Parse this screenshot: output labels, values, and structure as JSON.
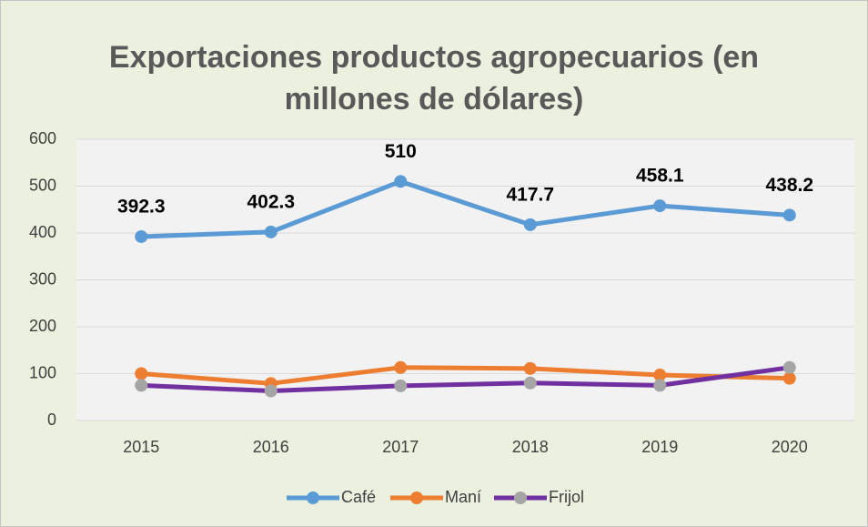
{
  "chart_data": {
    "type": "line",
    "title": "Exportaciones productos agropecuarios (en millones de dólares)",
    "categories": [
      "2015",
      "2016",
      "2017",
      "2018",
      "2019",
      "2020"
    ],
    "series": [
      {
        "name": "Café",
        "color": "#5b9bd5",
        "marker_color": "#5b9bd5",
        "data_labels": true,
        "values": [
          392.3,
          402.3,
          510,
          417.7,
          458.1,
          438.2
        ]
      },
      {
        "name": "Maní",
        "color": "#ed7d31",
        "marker_color": "#ed7d31",
        "data_labels": false,
        "values": [
          100,
          79,
          113,
          111,
          97,
          90
        ]
      },
      {
        "name": "Frijol",
        "color": "#7030a0",
        "marker_color": "#a5a5a5",
        "data_labels": false,
        "values": [
          75,
          63,
          74,
          80,
          75,
          113
        ]
      }
    ],
    "ylim": [
      0,
      600
    ],
    "yticks": [
      0,
      100,
      200,
      300,
      400,
      500,
      600
    ],
    "grid": true,
    "legend": "bottom"
  }
}
